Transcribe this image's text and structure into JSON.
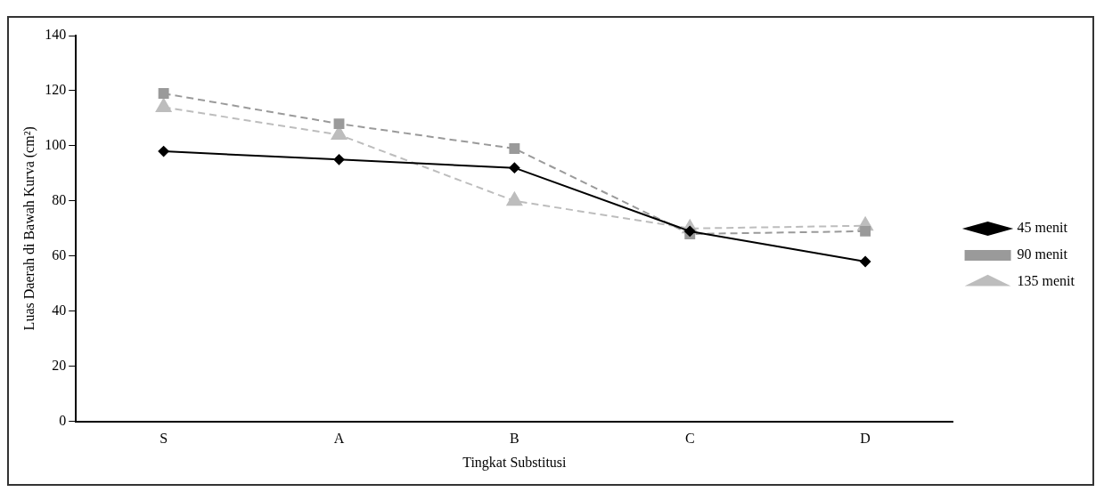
{
  "chart_data": {
    "type": "line",
    "xlabel": "Tingkat Substitusi",
    "ylabel": "Luas Daerah di Bawah Kurva (cm²)",
    "categories": [
      "S",
      "A",
      "B",
      "C",
      "D"
    ],
    "series": [
      {
        "name": "45 menit",
        "color": "#000000",
        "values": [
          98,
          95,
          92,
          69,
          58
        ],
        "marker": "diamond",
        "line_style": "solid"
      },
      {
        "name": "90 menit",
        "color": "#9a9a9a",
        "values": [
          119,
          108,
          99,
          68,
          69
        ],
        "marker": "square",
        "line_style": "dashed"
      },
      {
        "name": "135 menit",
        "color": "#bdbdbd",
        "values": [
          114,
          104,
          80,
          70,
          71
        ],
        "marker": "triangle",
        "line_style": "dashed"
      }
    ],
    "ylim": [
      0,
      140
    ],
    "yticks": [
      0,
      20,
      40,
      60,
      80,
      100,
      120,
      140
    ],
    "grid": false,
    "legend": "right"
  }
}
